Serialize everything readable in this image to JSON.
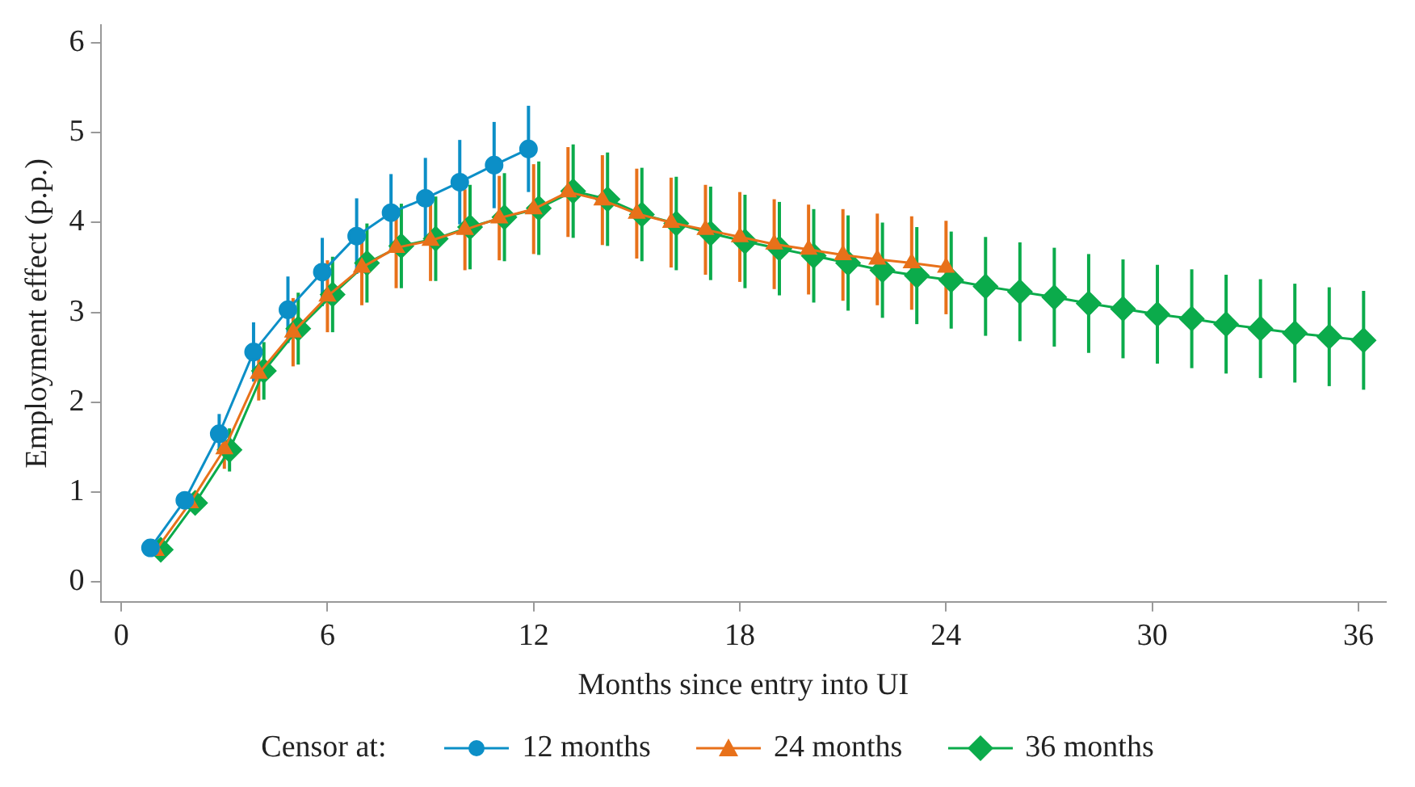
{
  "chart_data": {
    "type": "line",
    "xlabel": "Months since entry into UI",
    "ylabel": "Employment effect (p.p.)",
    "legend_title": "Censor at:",
    "xlim": [
      -0.6,
      36.8
    ],
    "xticks": [
      0,
      6,
      12,
      18,
      24,
      30,
      36
    ],
    "ylim": [
      -0.22,
      6.2
    ],
    "yticks": [
      0,
      1,
      2,
      3,
      4,
      5,
      6
    ],
    "grid": false,
    "legend": "bottom",
    "series": [
      {
        "name": "12 months",
        "color": "#0c8fc7",
        "marker": "circle",
        "x": [
          0.85,
          1.85,
          2.85,
          3.85,
          4.85,
          5.85,
          6.85,
          7.85,
          8.85,
          9.85,
          10.85,
          11.85
        ],
        "values": [
          0.38,
          0.91,
          1.65,
          2.56,
          3.03,
          3.45,
          3.85,
          4.11,
          4.27,
          4.45,
          4.64,
          4.82
        ],
        "errors": [
          null,
          null,
          0.22,
          0.33,
          0.37,
          0.38,
          0.42,
          0.43,
          0.45,
          0.47,
          0.48,
          0.48
        ]
      },
      {
        "name": "24 months",
        "color": "#e8711a",
        "marker": "triangle",
        "x": [
          1,
          2,
          3,
          4,
          5,
          6,
          7,
          8,
          9,
          10,
          11,
          12,
          13,
          14,
          15,
          16,
          17,
          18,
          19,
          20,
          21,
          22,
          23,
          24
        ],
        "values": [
          0.35,
          0.88,
          1.48,
          2.32,
          2.78,
          3.18,
          3.5,
          3.72,
          3.8,
          3.92,
          4.05,
          4.15,
          4.34,
          4.25,
          4.1,
          4.0,
          3.92,
          3.84,
          3.76,
          3.7,
          3.64,
          3.59,
          3.55,
          3.5
        ],
        "errors": [
          null,
          null,
          0.22,
          0.3,
          0.38,
          0.4,
          0.42,
          0.45,
          0.45,
          0.45,
          0.47,
          0.5,
          0.5,
          0.5,
          0.5,
          0.5,
          0.5,
          0.5,
          0.5,
          0.5,
          0.51,
          0.51,
          0.52,
          0.52
        ]
      },
      {
        "name": "36 months",
        "color": "#0bab4b",
        "marker": "diamond",
        "x": [
          1.15,
          2.15,
          3.15,
          4.15,
          5.15,
          6.15,
          7.15,
          8.15,
          9.15,
          10.15,
          11.15,
          12.15,
          13.15,
          14.15,
          15.15,
          16.15,
          17.15,
          18.15,
          19.15,
          20.15,
          21.15,
          22.15,
          23.15,
          24.15,
          25.15,
          26.15,
          27.15,
          28.15,
          29.15,
          30.15,
          31.15,
          32.15,
          33.15,
          34.15,
          35.15,
          36.15
        ],
        "values": [
          0.36,
          0.88,
          1.47,
          2.35,
          2.82,
          3.2,
          3.55,
          3.74,
          3.82,
          3.95,
          4.06,
          4.16,
          4.35,
          4.26,
          4.09,
          3.99,
          3.88,
          3.79,
          3.71,
          3.63,
          3.55,
          3.47,
          3.41,
          3.36,
          3.29,
          3.23,
          3.17,
          3.1,
          3.04,
          2.98,
          2.93,
          2.87,
          2.82,
          2.77,
          2.73,
          2.69
        ],
        "errors": [
          null,
          null,
          0.24,
          0.32,
          0.4,
          0.42,
          0.44,
          0.47,
          0.47,
          0.47,
          0.49,
          0.52,
          0.52,
          0.52,
          0.52,
          0.52,
          0.52,
          0.52,
          0.52,
          0.52,
          0.53,
          0.53,
          0.54,
          0.54,
          0.55,
          0.55,
          0.55,
          0.55,
          0.55,
          0.55,
          0.55,
          0.55,
          0.55,
          0.55,
          0.55,
          0.55
        ]
      }
    ]
  }
}
